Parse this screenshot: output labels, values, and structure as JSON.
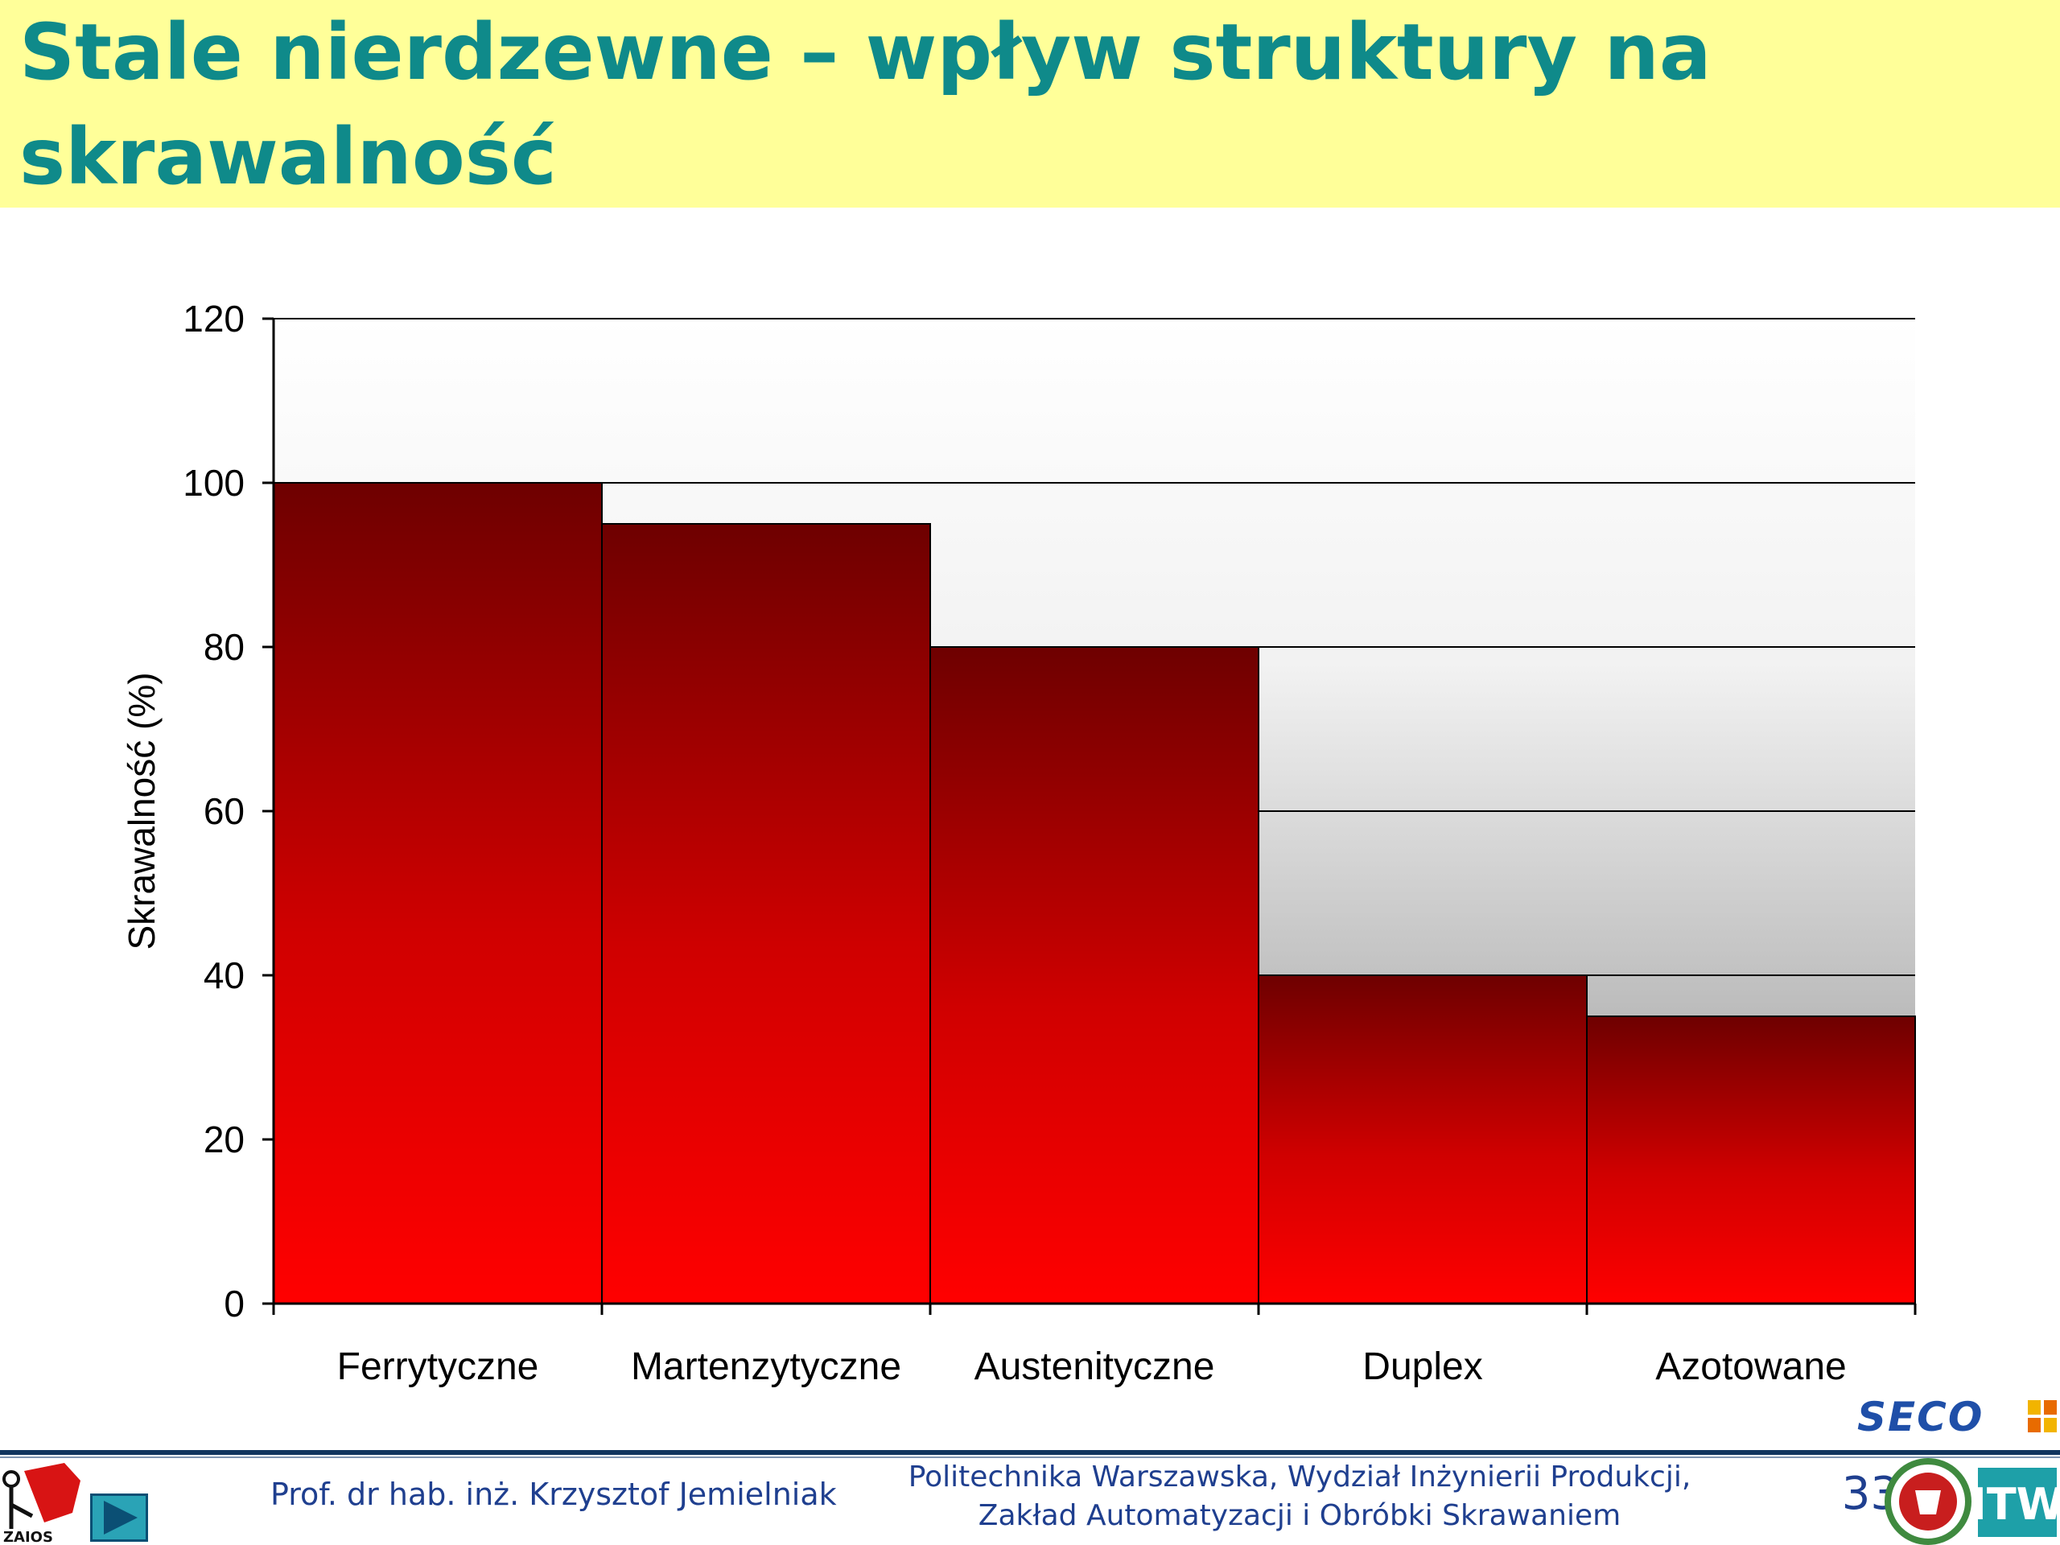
{
  "slide": {
    "title": "Stale nierdzewne – wpływ struktury na skrawalność",
    "footer": {
      "author": "Prof. dr hab. inż. Krzysztof Jemielniak",
      "institution_line1": "Politechnika Warszawska, Wydział Inżynierii Produkcji,",
      "institution_line2": "Zakład Automatyzacji i Obróbki Skrawaniem",
      "page_number": "33",
      "logo_left_text": "ZAIOS",
      "logo_seco_text": "SECO",
      "logo_right_text": "ITW"
    },
    "icons": {
      "play": "play-icon"
    },
    "colors": {
      "title": "#0f8a8a",
      "title_band": "#ffff99",
      "bar_top": "#6e0000",
      "bar_bottom": "#ff0000",
      "footer_text": "#1f3f8f"
    }
  },
  "chart_data": {
    "type": "bar",
    "categories": [
      "Ferrytyczne",
      "Martenzytyczne",
      "Austenityczne",
      "Duplex",
      "Azotowane"
    ],
    "values": [
      100,
      95,
      80,
      40,
      35
    ],
    "ylabel": "Skrawalność (%)",
    "xlabel": "",
    "ylim": [
      0,
      120
    ],
    "yticks": [
      0,
      20,
      40,
      60,
      80,
      100,
      120
    ],
    "grid": true,
    "legend": "none",
    "plot_background": "gradient white-to-gray"
  }
}
